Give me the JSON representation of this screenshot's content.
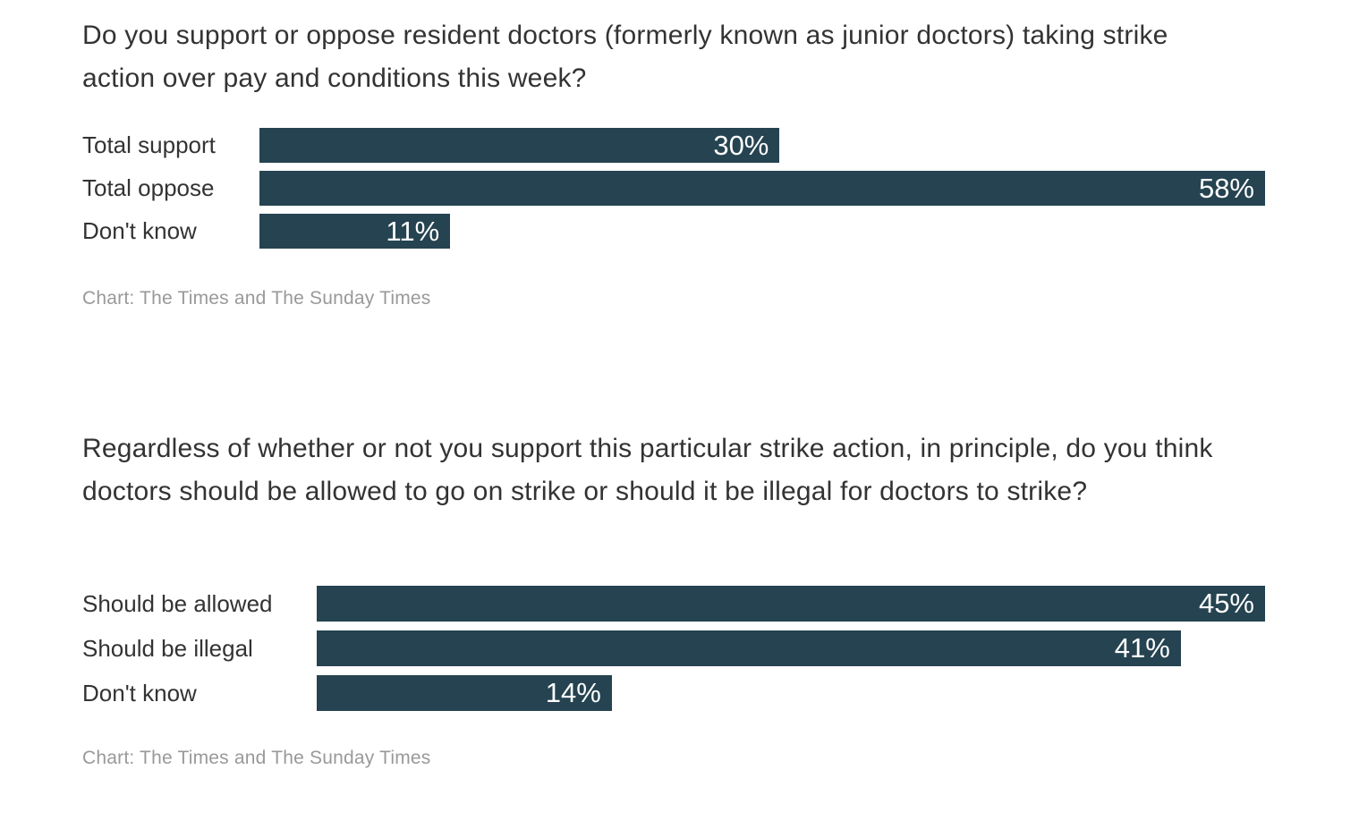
{
  "colors": {
    "background": "#ffffff",
    "title_text": "#333333",
    "category_text": "#333333",
    "caption_text": "#999999",
    "bar": "#254350",
    "bar_value_text": "#ffffff"
  },
  "chart_data": [
    {
      "type": "bar",
      "orientation": "horizontal",
      "title": "Do you support or oppose resident doctors (formerly known as junior doctors) taking strike action over pay and conditions this week?",
      "categories": [
        "Total support",
        "Total oppose",
        "Don't know"
      ],
      "values": [
        30,
        58,
        11
      ],
      "value_labels": [
        "30%",
        "58%",
        "11%"
      ],
      "value_suffix": "%",
      "xlim": [
        0,
        58
      ],
      "grid": false,
      "axes_shown": false,
      "legend": "none",
      "bar_color": "#254350",
      "value_label_position": "inside-end",
      "caption": "Chart: The Times and The Sunday Times"
    },
    {
      "type": "bar",
      "orientation": "horizontal",
      "title": "Regardless of whether or not you support this particular strike action, in principle, do you think doctors should be allowed to go on strike or should it be illegal for doctors to strike?",
      "categories": [
        "Should be allowed",
        "Should be illegal",
        "Don't know"
      ],
      "values": [
        45,
        41,
        14
      ],
      "value_labels": [
        "45%",
        "41%",
        "14%"
      ],
      "value_suffix": "%",
      "xlim": [
        0,
        45
      ],
      "grid": false,
      "axes_shown": false,
      "legend": "none",
      "bar_color": "#254350",
      "value_label_position": "inside-end",
      "caption": "Chart: The Times and The Sunday Times"
    }
  ]
}
